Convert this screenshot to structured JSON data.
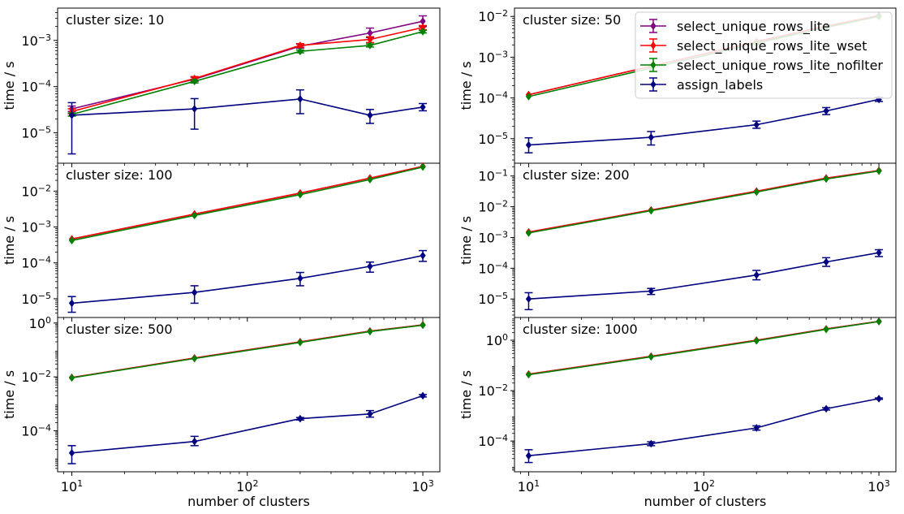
{
  "figure": {
    "ylabel": "time / s",
    "xlabel": "number of clusters",
    "legend": {
      "placement": "upper-right of top-right panel",
      "entries": [
        {
          "label": "select_unique_rows_lite",
          "color": "#800080"
        },
        {
          "label": "select_unique_rows_lite_wset",
          "color": "#ff0000"
        },
        {
          "label": "select_unique_rows_lite_nofilter",
          "color": "#008000"
        },
        {
          "label": "assign_labels",
          "color": "#000080"
        }
      ]
    },
    "x_tick_labels": [
      "10",
      "10",
      "10"
    ],
    "x_tick_exponents": [
      "1",
      "2",
      "3"
    ]
  },
  "chart_data": [
    {
      "type": "line",
      "panel": "top-left",
      "annotation": "cluster size: 10",
      "xscale": "log",
      "yscale": "log",
      "xlim": [
        8.3,
        1250
      ],
      "ylim": [
        2.2e-06,
        0.005
      ],
      "yticks": [
        {
          "base": "10",
          "exp": "−5",
          "value": 1e-05
        },
        {
          "base": "10",
          "exp": "−4",
          "value": 0.0001
        },
        {
          "base": "10",
          "exp": "−3",
          "value": 0.001
        }
      ],
      "x": [
        10,
        50,
        200,
        500,
        1000
      ],
      "series": [
        {
          "name": "select_unique_rows_lite",
          "color": "#800080",
          "values": [
            3.3e-05,
            0.000145,
            0.00075,
            0.00145,
            0.0026
          ],
          "err_low": [
            2.9e-05,
            0.00013,
            0.00068,
            0.00115,
            0.002
          ],
          "err_high": [
            3.8e-05,
            0.00016,
            0.00083,
            0.00185,
            0.0034
          ]
        },
        {
          "name": "select_unique_rows_lite_wset",
          "color": "#ff0000",
          "values": [
            2.9e-05,
            0.00015,
            0.00078,
            0.00105,
            0.0019
          ],
          "err_low": [
            2.6e-05,
            0.000135,
            0.00071,
            0.0009,
            0.0017
          ],
          "err_high": [
            3.3e-05,
            0.000165,
            0.00085,
            0.0012,
            0.0021
          ]
        },
        {
          "name": "select_unique_rows_lite_nofilter",
          "color": "#008000",
          "values": [
            2.5e-05,
            0.00013,
            0.00058,
            0.00078,
            0.00155
          ],
          "err_low": [
            2.3e-05,
            0.00012,
            0.00054,
            0.00072,
            0.00145
          ],
          "err_high": [
            2.7e-05,
            0.00014,
            0.00062,
            0.00084,
            0.00165
          ]
        },
        {
          "name": "assign_labels",
          "color": "#000080",
          "values": [
            2.4e-05,
            3.3e-05,
            5.4e-05,
            2.4e-05,
            3.6e-05
          ],
          "err_low": [
            3.5e-06,
            1.2e-05,
            2.6e-05,
            1.6e-05,
            3e-05
          ],
          "err_high": [
            4.5e-05,
            5.5e-05,
            8.5e-05,
            3.2e-05,
            4.3e-05
          ]
        }
      ]
    },
    {
      "type": "line",
      "panel": "top-right",
      "annotation": "cluster size: 50",
      "xscale": "log",
      "yscale": "log",
      "xlim": [
        8.3,
        1250
      ],
      "ylim": [
        2.5e-06,
        0.016
      ],
      "yticks": [
        {
          "base": "10",
          "exp": "−5",
          "value": 1e-05
        },
        {
          "base": "10",
          "exp": "−4",
          "value": 0.0001
        },
        {
          "base": "10",
          "exp": "−3",
          "value": 0.001
        },
        {
          "base": "10",
          "exp": "−2",
          "value": 0.01
        }
      ],
      "x": [
        10,
        50,
        200,
        500,
        1000
      ],
      "series": [
        {
          "name": "select_unique_rows_lite",
          "color": "#800080",
          "values": [
            0.00012,
            0.0006,
            0.0024,
            0.0058,
            0.0105
          ]
        },
        {
          "name": "select_unique_rows_lite_wset",
          "color": "#ff0000",
          "values": [
            0.00012,
            0.0006,
            0.0024,
            0.0058,
            0.0105
          ]
        },
        {
          "name": "select_unique_rows_lite_nofilter",
          "color": "#008000",
          "values": [
            0.000108,
            0.00054,
            0.0022,
            0.0054,
            0.01
          ]
        },
        {
          "name": "assign_labels",
          "color": "#000080",
          "values": [
            7e-06,
            1.08e-05,
            2.2e-05,
            4.8e-05,
            9.2e-05
          ],
          "err_low": [
            4.5e-06,
            7e-06,
            1.8e-05,
            3.9e-05,
            8.2e-05
          ],
          "err_high": [
            1.05e-05,
            1.5e-05,
            2.7e-05,
            5.8e-05,
            0.000103
          ]
        }
      ]
    },
    {
      "type": "line",
      "panel": "middle-left",
      "annotation": "cluster size: 100",
      "xscale": "log",
      "yscale": "log",
      "xlim": [
        8.3,
        1250
      ],
      "ylim": [
        3e-06,
        0.06
      ],
      "yticks": [
        {
          "base": "10",
          "exp": "−5",
          "value": 1e-05
        },
        {
          "base": "10",
          "exp": "−4",
          "value": 0.0001
        },
        {
          "base": "10",
          "exp": "−3",
          "value": 0.001
        },
        {
          "base": "10",
          "exp": "−2",
          "value": 0.01
        }
      ],
      "x": [
        10,
        50,
        200,
        500,
        1000
      ],
      "series": [
        {
          "name": "select_unique_rows_lite",
          "color": "#800080",
          "values": [
            0.00046,
            0.0023,
            0.0088,
            0.023,
            0.049
          ]
        },
        {
          "name": "select_unique_rows_lite_wset",
          "color": "#ff0000",
          "values": [
            0.00046,
            0.0023,
            0.0088,
            0.023,
            0.049
          ]
        },
        {
          "name": "select_unique_rows_lite_nofilter",
          "color": "#008000",
          "values": [
            0.00042,
            0.0021,
            0.008,
            0.021,
            0.047
          ]
        },
        {
          "name": "assign_labels",
          "color": "#000080",
          "values": [
            7.5e-06,
            1.5e-05,
            3.7e-05,
            8e-05,
            0.00016
          ],
          "err_low": [
            4.2e-06,
            7.5e-06,
            2.3e-05,
            5.5e-05,
            0.00011
          ],
          "err_high": [
            1.15e-05,
            2.3e-05,
            5.4e-05,
            0.000105,
            0.00022
          ]
        }
      ]
    },
    {
      "type": "line",
      "panel": "middle-right",
      "annotation": "cluster size: 200",
      "xscale": "log",
      "yscale": "log",
      "xlim": [
        8.3,
        1250
      ],
      "ylim": [
        2.5e-06,
        0.26
      ],
      "yticks": [
        {
          "base": "10",
          "exp": "−5",
          "value": 1e-05
        },
        {
          "base": "10",
          "exp": "−4",
          "value": 0.0001
        },
        {
          "base": "10",
          "exp": "−3",
          "value": 0.001
        },
        {
          "base": "10",
          "exp": "−2",
          "value": 0.01
        },
        {
          "base": "10",
          "exp": "−1",
          "value": 0.1
        }
      ],
      "x": [
        10,
        50,
        200,
        500,
        1000
      ],
      "series": [
        {
          "name": "select_unique_rows_lite",
          "color": "#800080",
          "values": [
            0.0015,
            0.0078,
            0.032,
            0.085,
            0.15
          ]
        },
        {
          "name": "select_unique_rows_lite_wset",
          "color": "#ff0000",
          "values": [
            0.0015,
            0.0078,
            0.032,
            0.085,
            0.15
          ]
        },
        {
          "name": "select_unique_rows_lite_nofilter",
          "color": "#008000",
          "values": [
            0.0014,
            0.0074,
            0.03,
            0.08,
            0.145
          ]
        },
        {
          "name": "assign_labels",
          "color": "#000080",
          "values": [
            1e-05,
            1.8e-05,
            6e-05,
            0.00016,
            0.00032
          ],
          "err_low": [
            4.5e-06,
            1.4e-05,
            4.2e-05,
            0.000115,
            0.00024
          ],
          "err_high": [
            1.6e-05,
            2.2e-05,
            8.5e-05,
            0.00022,
            0.0004
          ]
        }
      ]
    },
    {
      "type": "line",
      "panel": "bottom-left",
      "annotation": "cluster size: 500",
      "xscale": "log",
      "yscale": "log",
      "xlim": [
        8.3,
        1250
      ],
      "ylim": [
        3e-06,
        1.6
      ],
      "yticks": [
        {
          "base": "10",
          "exp": "−4",
          "value": 0.0001
        },
        {
          "base": "10",
          "exp": "−2",
          "value": 0.01
        },
        {
          "base": "10",
          "exp": "0",
          "value": 1
        }
      ],
      "x": [
        10,
        50,
        200,
        500,
        1000
      ],
      "series": [
        {
          "name": "select_unique_rows_lite",
          "color": "#800080",
          "values": [
            0.0095,
            0.05,
            0.2,
            0.5,
            0.85
          ]
        },
        {
          "name": "select_unique_rows_lite_wset",
          "color": "#ff0000",
          "values": [
            0.0095,
            0.05,
            0.2,
            0.5,
            0.85
          ]
        },
        {
          "name": "select_unique_rows_lite_nofilter",
          "color": "#008000",
          "values": [
            0.0092,
            0.048,
            0.19,
            0.48,
            0.83
          ]
        },
        {
          "name": "assign_labels",
          "color": "#000080",
          "values": [
            1.5e-05,
            4e-05,
            0.00028,
            0.00042,
            0.002
          ],
          "err_low": [
            6e-06,
            2.8e-05,
            0.00025,
            0.00032,
            0.0018
          ],
          "err_high": [
            2.8e-05,
            6.2e-05,
            0.00031,
            0.00056,
            0.0022
          ]
        }
      ]
    },
    {
      "type": "line",
      "panel": "bottom-right",
      "annotation": "cluster size: 1000",
      "xscale": "log",
      "yscale": "log",
      "xlim": [
        8.3,
        1250
      ],
      "ylim": [
        6e-06,
        8
      ],
      "yticks": [
        {
          "base": "10",
          "exp": "−4",
          "value": 0.0001
        },
        {
          "base": "10",
          "exp": "−2",
          "value": 0.01
        },
        {
          "base": "10",
          "exp": "0",
          "value": 1
        }
      ],
      "x": [
        10,
        50,
        200,
        500,
        1000
      ],
      "series": [
        {
          "name": "select_unique_rows_lite",
          "color": "#800080",
          "values": [
            0.045,
            0.23,
            1.0,
            2.8,
            5.6
          ]
        },
        {
          "name": "select_unique_rows_lite_wset",
          "color": "#ff0000",
          "values": [
            0.045,
            0.23,
            1.0,
            2.8,
            5.6
          ]
        },
        {
          "name": "select_unique_rows_lite_nofilter",
          "color": "#008000",
          "values": [
            0.043,
            0.22,
            0.95,
            2.7,
            5.5
          ]
        },
        {
          "name": "assign_labels",
          "color": "#000080",
          "values": [
            2.6e-05,
            7.8e-05,
            0.00033,
            0.0019,
            0.0048
          ],
          "err_low": [
            1.4e-05,
            6.5e-05,
            0.00027,
            0.0017,
            0.0045
          ],
          "err_high": [
            4.5e-05,
            9.3e-05,
            0.0004,
            0.0021,
            0.0051
          ]
        }
      ]
    }
  ]
}
